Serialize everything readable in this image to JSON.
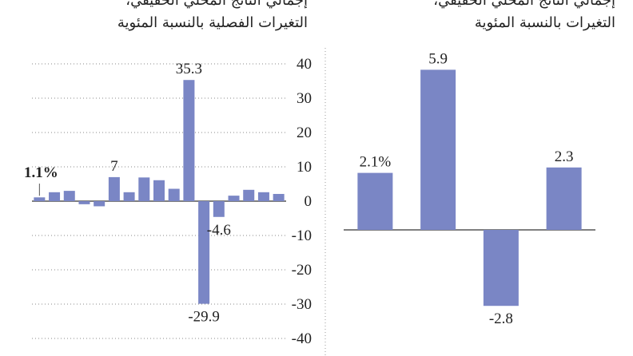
{
  "chart_data": [
    {
      "type": "bar",
      "title": "إجمالي الناتج المحلي الحقيقي،",
      "subtitle": "التغيرات الفصلية بالنسبة المئوية",
      "values": [
        1.1,
        2.6,
        3.0,
        -0.9,
        -1.5,
        7,
        2.6,
        6.9,
        6.1,
        3.6,
        35.3,
        -29.9,
        -4.6,
        1.6,
        3.3,
        2.6,
        2.1
      ],
      "value_labels": [
        "1.1%",
        null,
        null,
        null,
        null,
        "7",
        null,
        null,
        null,
        null,
        "35.3",
        "-29.9",
        "-4.6",
        null,
        null,
        null,
        null
      ],
      "color": "#7a86c5",
      "ylim": [
        -40,
        40
      ],
      "yticks": [
        -40,
        -30,
        -20,
        -10,
        0,
        10,
        20,
        30,
        40
      ],
      "grid": true
    },
    {
      "type": "bar",
      "title": "إجمالي الناتج المحلي الحقيقي،",
      "subtitle": "التغيرات بالنسبة المئوية",
      "values": [
        2.1,
        5.9,
        -2.8,
        2.3
      ],
      "value_labels": [
        "2.1%",
        "5.9",
        "-2.8",
        "2.3"
      ],
      "color": "#7a86c5"
    }
  ]
}
